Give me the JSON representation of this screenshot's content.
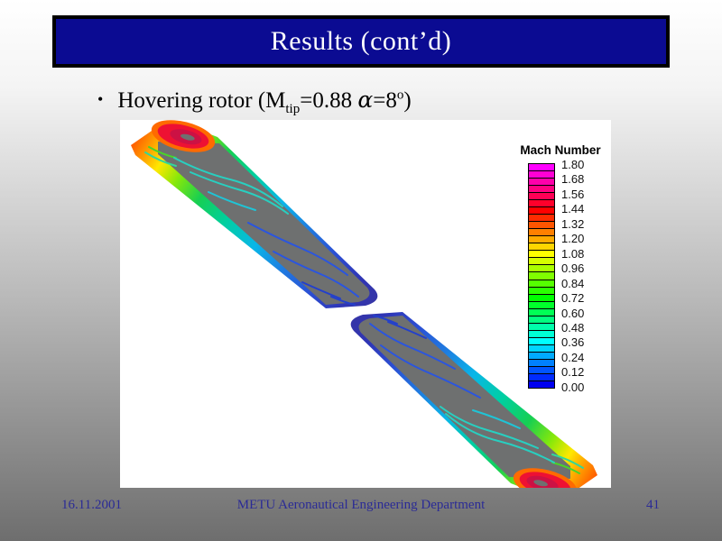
{
  "slide": {
    "title": "Results (cont’d)",
    "bullet": {
      "marker": "•",
      "p1": "Hovering rotor  (M",
      "sub": "tip",
      "p2": "=0.88 ",
      "alpha": "α",
      "p3": "=8",
      "sup": "o",
      "p4": ")"
    },
    "footer": {
      "date": "16.11.2001",
      "department": "METU Aeronautical Engineering Department",
      "page_number": "41"
    }
  },
  "chart_data": {
    "type": "heatmap",
    "title": "Mach Number",
    "description": "CFD Mach-number surface contours on two hovering rotor blades (opposite azimuth), gray blade surfaces with rainbow contour bands; supersonic red pocket near each blade tip, blue low-Mach contours near the root.",
    "legend": {
      "title": "Mach Number",
      "position": "upper right",
      "range": [
        0.0,
        1.8
      ],
      "tick_step": 0.12,
      "tick_labels": [
        "1.80",
        "1.68",
        "1.56",
        "1.44",
        "1.32",
        "1.20",
        "1.08",
        "0.96",
        "0.84",
        "0.72",
        "0.60",
        "0.48",
        "0.36",
        "0.24",
        "0.12",
        "0.00"
      ],
      "cell_colors": [
        "#ff00ff",
        "#ff00d5",
        "#ff00aa",
        "#ff0080",
        "#ff0055",
        "#ff002b",
        "#ff0000",
        "#ff2b00",
        "#ff5500",
        "#ff8000",
        "#ffaa00",
        "#ffd500",
        "#ffff00",
        "#d5ff00",
        "#aaff00",
        "#80ff00",
        "#55ff00",
        "#2bff00",
        "#00ff00",
        "#00ff2b",
        "#00ff55",
        "#00ff80",
        "#00ffaa",
        "#00ffd5",
        "#00ffff",
        "#00d5ff",
        "#00aaff",
        "#0080ff",
        "#0055ff",
        "#002bff",
        "#0000f0"
      ]
    }
  },
  "colors": {
    "title_bar_bg": "#0b0b92",
    "title_text": "#ffffff",
    "footer_text": "#2b2b96",
    "blade_gray": "#6e7070",
    "figure_bg": "#ffffff"
  }
}
